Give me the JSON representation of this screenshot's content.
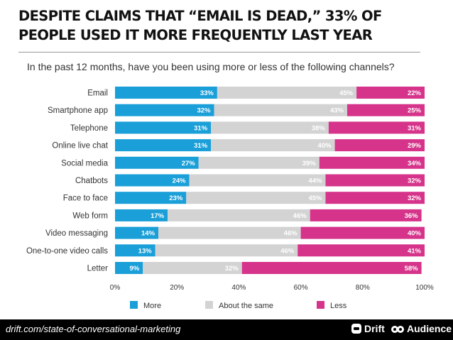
{
  "title": {
    "line1": "DESPITE CLAIMS THAT “EMAIL IS DEAD,” 33% OF",
    "line2": "PEOPLE USED IT MORE FREQUENTLY LAST YEAR"
  },
  "subtitle": "In the past 12 months, have you been using more or less of the following channels?",
  "chart_data": {
    "type": "bar",
    "orientation": "horizontal",
    "stacked": true,
    "categories": [
      "Email",
      "Smartphone app",
      "Telephone",
      "Online live chat",
      "Social media",
      "Chatbots",
      "Face to face",
      "Web form",
      "Video messaging",
      "One-to-one video calls",
      "Letter"
    ],
    "series": [
      {
        "name": "More",
        "color": "#1a9fd8",
        "values": [
          33,
          32,
          31,
          31,
          27,
          24,
          23,
          17,
          14,
          13,
          9
        ]
      },
      {
        "name": "About the same",
        "color": "#d3d3d3",
        "values": [
          45,
          43,
          38,
          40,
          39,
          44,
          45,
          46,
          46,
          46,
          32
        ]
      },
      {
        "name": "Less",
        "color": "#d6338a",
        "values": [
          22,
          25,
          31,
          29,
          34,
          32,
          32,
          36,
          40,
          41,
          58
        ]
      }
    ],
    "value_suffix": "%",
    "x_ticks": [
      "0%",
      "20%",
      "40%",
      "60%",
      "80%",
      "100%"
    ],
    "xlim": [
      0,
      100
    ],
    "legend_position": "bottom",
    "grid": false
  },
  "footer": {
    "source": "drift.com/state-of-conversational-marketing",
    "brand1": "Drift",
    "brand2": "Audience"
  }
}
